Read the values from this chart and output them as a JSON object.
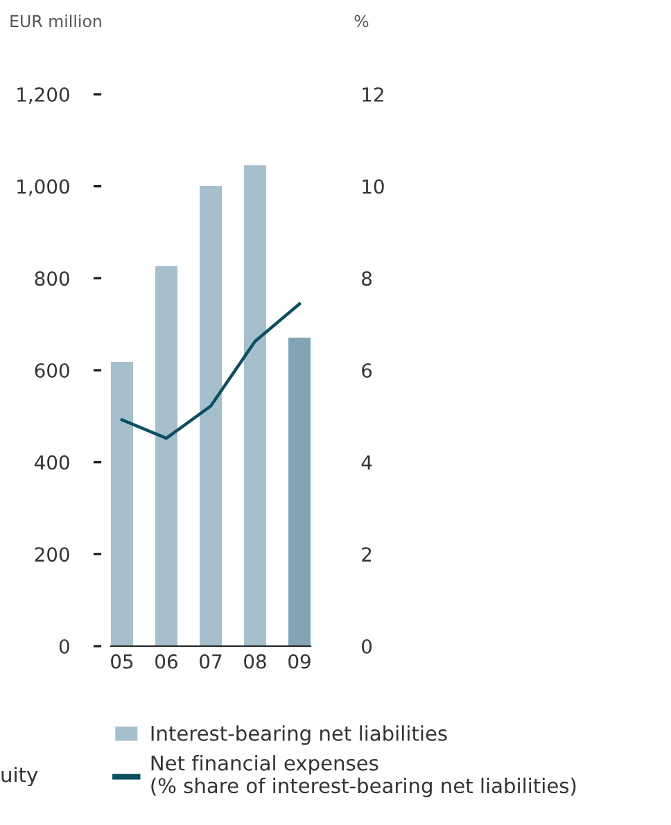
{
  "chart_data": {
    "type": "bar",
    "ylabel": "EUR million",
    "y2label": "%",
    "categories": [
      "05",
      "06",
      "07",
      "08",
      "09"
    ],
    "series": [
      {
        "name": "Interest-bearing net liabilities",
        "color": "#a6bfcd",
        "colors": [
          "#a6bfcd",
          "#a6bfcd",
          "#a6bfcd",
          "#a6bfcd",
          "#82a5b6"
        ],
        "values": [
          618,
          826,
          1001,
          1046,
          671
        ]
      },
      {
        "name": "Net financial expenses\n(% share of interest-bearing net liabilities)",
        "type": "line",
        "axis": "y2",
        "color": "#0c4f63",
        "values": [
          4.92,
          4.52,
          5.22,
          6.63,
          7.44
        ]
      }
    ],
    "ylim": [
      0,
      1200
    ],
    "yticks": [
      0,
      {
        "value": 200,
        "label": "200"
      },
      {
        "value": 400,
        "label": "400"
      },
      {
        "value": 600,
        "label": "600"
      },
      {
        "value": 800,
        "label": "800"
      },
      {
        "value": 1000,
        "label": "1,000"
      },
      {
        "value": 1200,
        "label": "1,200"
      }
    ],
    "y2lim": [
      0,
      12
    ],
    "y2ticks": [
      0,
      2,
      4,
      6,
      8,
      10,
      12
    ],
    "grid": false,
    "legend": "bottom",
    "marker": "none",
    "line_style": "solid",
    "annotations": [
      "uity"
    ]
  }
}
